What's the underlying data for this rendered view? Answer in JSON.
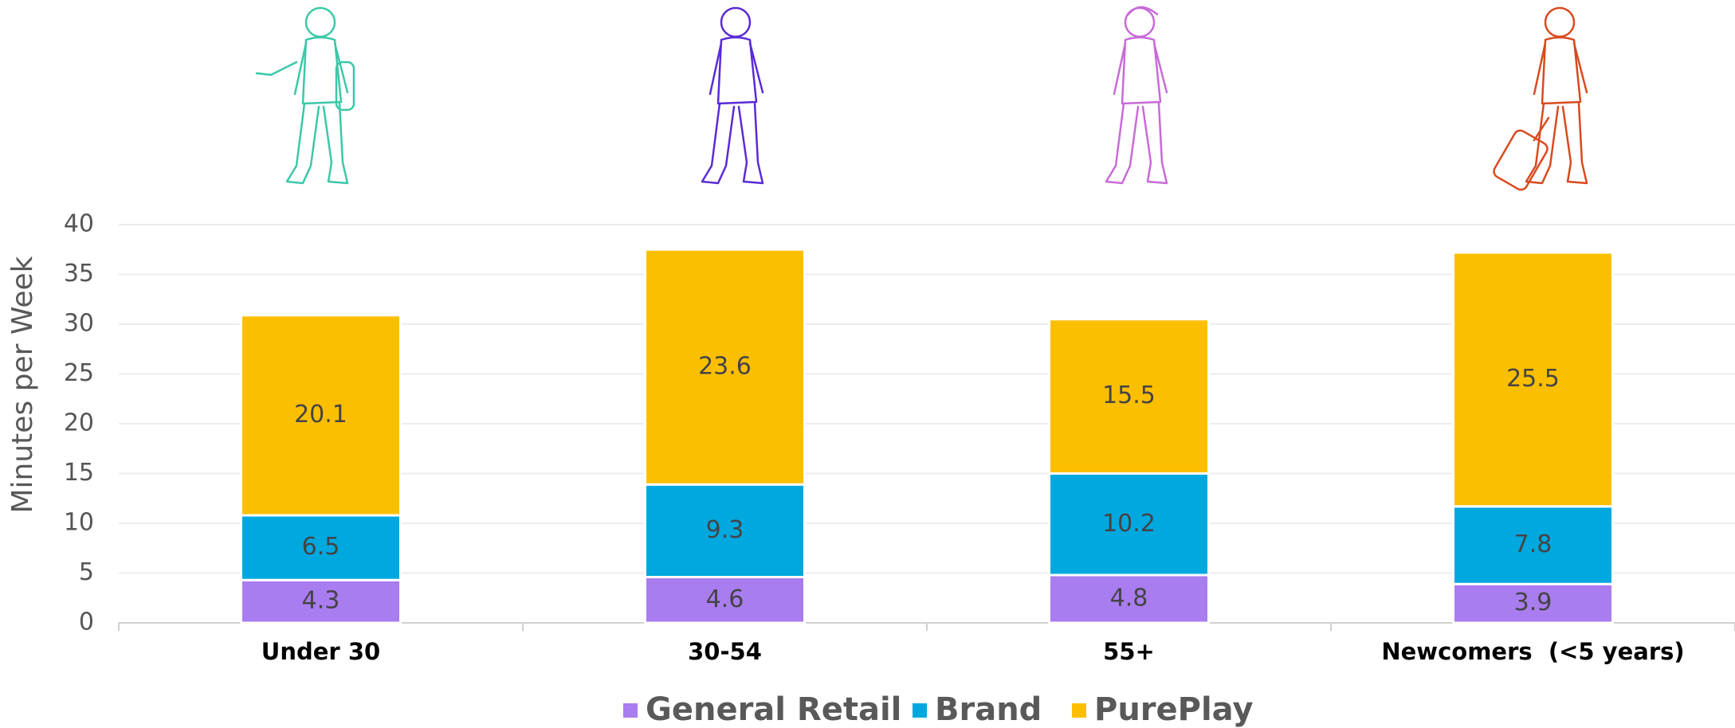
{
  "chart_data": {
    "type": "stacked_bar",
    "y_label": "Minutes per Week",
    "categories": [
      "Under 30",
      "30-54",
      "55+",
      "Newcomers  (<5 years)"
    ],
    "series": [
      {
        "name": "General Retail",
        "color": "#a97cf0",
        "values": [
          4.3,
          4.6,
          4.8,
          3.9
        ]
      },
      {
        "name": "Brand",
        "color": "#00a8e0",
        "values": [
          6.5,
          9.3,
          10.2,
          7.8
        ]
      },
      {
        "name": "PurePlay",
        "color": "#fcbf00",
        "values": [
          20.1,
          23.6,
          15.5,
          25.5
        ]
      }
    ],
    "ylim": [
      0,
      40
    ],
    "yticks": [
      0,
      5,
      10,
      15,
      20,
      25,
      30,
      35,
      40
    ],
    "grid": true
  }
}
